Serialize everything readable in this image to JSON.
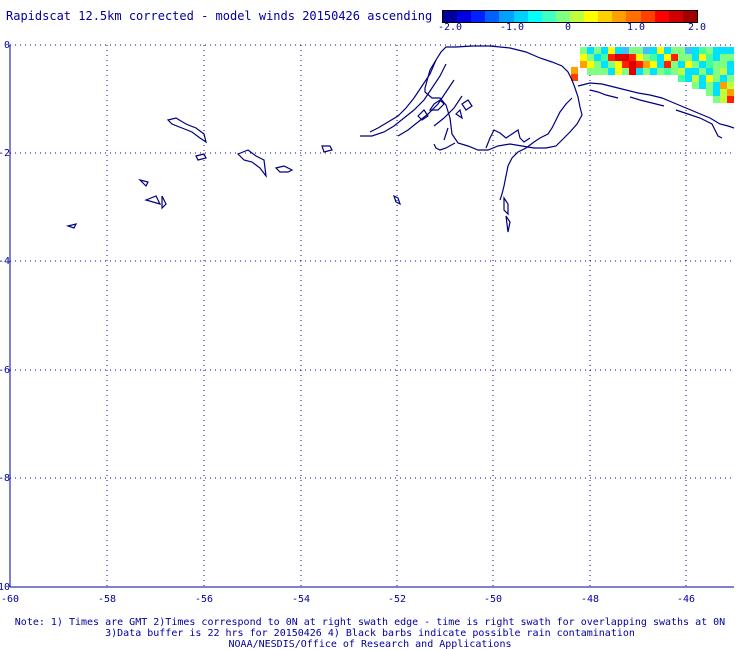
{
  "title": "Rapidscat 12.5km corrected - model winds 20150426 ascending",
  "colorbar": {
    "labels": [
      "-2.0",
      "-1.0",
      "0",
      "1.0",
      "2.0"
    ],
    "colors": [
      "#0000a0",
      "#0000e0",
      "#0020ff",
      "#0060ff",
      "#00a0ff",
      "#00d0ff",
      "#00ffff",
      "#40ffc0",
      "#80ff80",
      "#c0ff40",
      "#ffff00",
      "#ffd000",
      "#ffa000",
      "#ff7000",
      "#ff4000",
      "#ff0000",
      "#d00000",
      "#a00000"
    ]
  },
  "axes": {
    "x_ticks": [
      "-60",
      "-58",
      "-56",
      "-54",
      "-52",
      "-50",
      "-48",
      "-46"
    ],
    "y_ticks": [
      "0",
      "-2",
      "-4",
      "-6",
      "-8",
      "-10"
    ]
  },
  "notes": {
    "line1": "Note: 1) Times are GMT 2)Times correspond to 0N at right swath edge - time is right swath for overlapping swaths at 0N",
    "line2": "3)Data buffer is 22 hrs for 20150426 4) Black barbs indicate possible rain contamination",
    "line3": "NOAA/NESDIS/Office of Research and Applications"
  },
  "colors": {
    "text": "#0000a0",
    "grid": "#0000a0",
    "coast": "#000080"
  }
}
